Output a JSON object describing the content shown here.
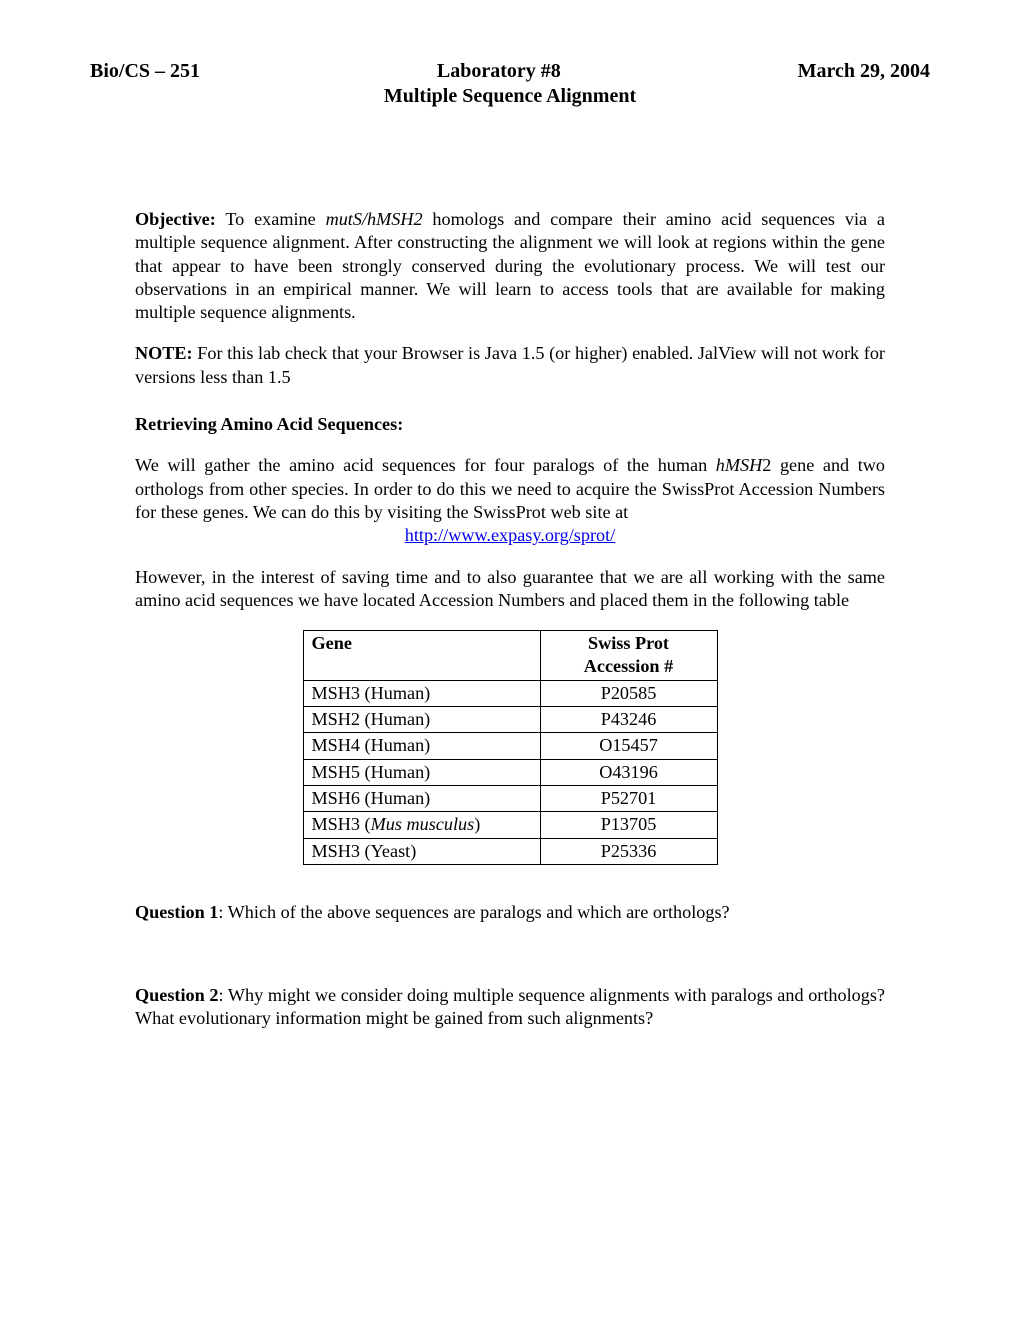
{
  "header": {
    "left": "Bio/CS – 251",
    "center": "Laboratory #8",
    "right": "March 29, 2004",
    "subtitle": "Multiple Sequence Alignment"
  },
  "objective": {
    "label": "Objective:",
    "pre": "  To examine ",
    "italic": "mutS/hMSH2",
    "post": " homologs and compare their amino acid sequences via a multiple sequence alignment.  After constructing the alignment we will look at regions within the gene that appear to have been strongly conserved during the evolutionary process.  We will test our observations in an empirical manner.  We will learn to access tools that are available for making multiple sequence alignments."
  },
  "note": {
    "label": "NOTE:",
    "text": "  For this lab check that your Browser is Java 1.5 (or higher) enabled.  JalView will not work for versions less than 1.5"
  },
  "retrieving": {
    "heading": "Retrieving Amino Acid Sequences:",
    "p1_pre": "We will gather the amino acid sequences for four paralogs of the human ",
    "p1_italic": "hMSH",
    "p1_after_italic": "2",
    "p1_post": " gene and two orthologs from other species.  In order to do this we need to acquire the SwissProt Accession Numbers for these genes.  We can do this by visiting the SwissProt web site at",
    "link": "http://www.expasy.org/sprot/",
    "p2": "However, in the interest of saving time and to also guarantee that we are all working with the same amino acid sequences we have located Accession Numbers and placed them in the following table"
  },
  "table": {
    "col1": "Gene",
    "col2a": "Swiss Prot",
    "col2b": "Accession #",
    "rows": [
      {
        "gene_pre": "MSH3 (Human)",
        "gene_italic": "",
        "gene_post": "",
        "acc": "P20585"
      },
      {
        "gene_pre": "MSH2 (Human)",
        "gene_italic": "",
        "gene_post": "",
        "acc": "P43246"
      },
      {
        "gene_pre": "MSH4 (Human)",
        "gene_italic": "",
        "gene_post": "",
        "acc": "O15457"
      },
      {
        "gene_pre": "MSH5 (Human)",
        "gene_italic": "",
        "gene_post": "",
        "acc": "O43196"
      },
      {
        "gene_pre": "MSH6 (Human)",
        "gene_italic": "",
        "gene_post": "",
        "acc": "P52701"
      },
      {
        "gene_pre": "MSH3 (",
        "gene_italic": "Mus musculus",
        "gene_post": ")",
        "acc": "P13705"
      },
      {
        "gene_pre": "MSH3 (Yeast)",
        "gene_italic": "",
        "gene_post": "",
        "acc": "P25336"
      }
    ]
  },
  "q1": {
    "label": "Question 1",
    "text": ":  Which of the above sequences are paralogs and which are orthologs?"
  },
  "q2": {
    "label": "Question 2",
    "text": ":  Why might we consider doing multiple sequence alignments with paralogs and orthologs?  What evolutionary information might be gained from such alignments?"
  }
}
